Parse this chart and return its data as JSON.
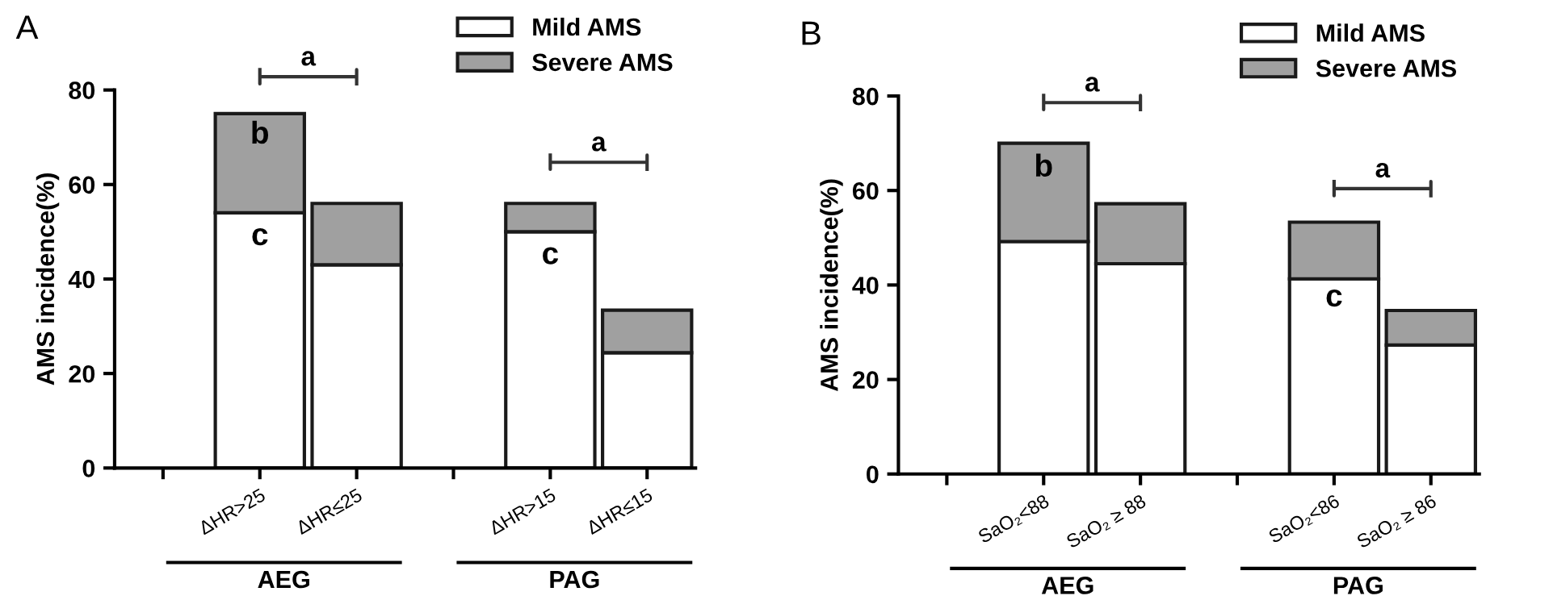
{
  "chart_data": [
    {
      "type": "bar",
      "title": "A",
      "ylabel": "AMS incidence(%)",
      "stacked": true,
      "legend": "top right",
      "categories": [
        null,
        "ΔHR>25",
        "ΔHR≤25",
        null,
        "ΔHR>15",
        "ΔHR≤15"
      ],
      "series": [
        {
          "name": "Mild AMS",
          "color": "#ffffff",
          "values": [
            null,
            54,
            43,
            null,
            50,
            24.4
          ]
        },
        {
          "name": "Severe AMS",
          "color": "#a0a0a0",
          "values": [
            null,
            21,
            13,
            null,
            6,
            9
          ]
        }
      ],
      "ylim": [
        0,
        80
      ],
      "yticks": [
        0,
        20,
        40,
        60,
        80
      ],
      "annotations": [
        "a",
        "a",
        "b",
        "c",
        "c",
        "AEG",
        "PAG"
      ]
    },
    {
      "type": "bar",
      "title": "B",
      "ylabel": "AMS incidence(%)",
      "stacked": true,
      "legend": "top right",
      "categories": [
        null,
        "SaO₂<88",
        "SaO₂ ≥ 88",
        null,
        "SaO₂<86",
        "SaO₂ ≥ 86"
      ],
      "series": [
        {
          "name": "Mild AMS",
          "color": "#ffffff",
          "values": [
            null,
            49.2,
            44.5,
            null,
            41.3,
            27.3
          ]
        },
        {
          "name": "Severe AMS",
          "color": "#a0a0a0",
          "values": [
            null,
            20.8,
            12.7,
            null,
            12,
            7.3
          ]
        }
      ],
      "ylim": [
        0,
        80
      ],
      "yticks": [
        0,
        20,
        40,
        60,
        80
      ],
      "annotations": [
        "a",
        "a",
        "b",
        "c",
        "AEG",
        "PAG"
      ]
    }
  ]
}
